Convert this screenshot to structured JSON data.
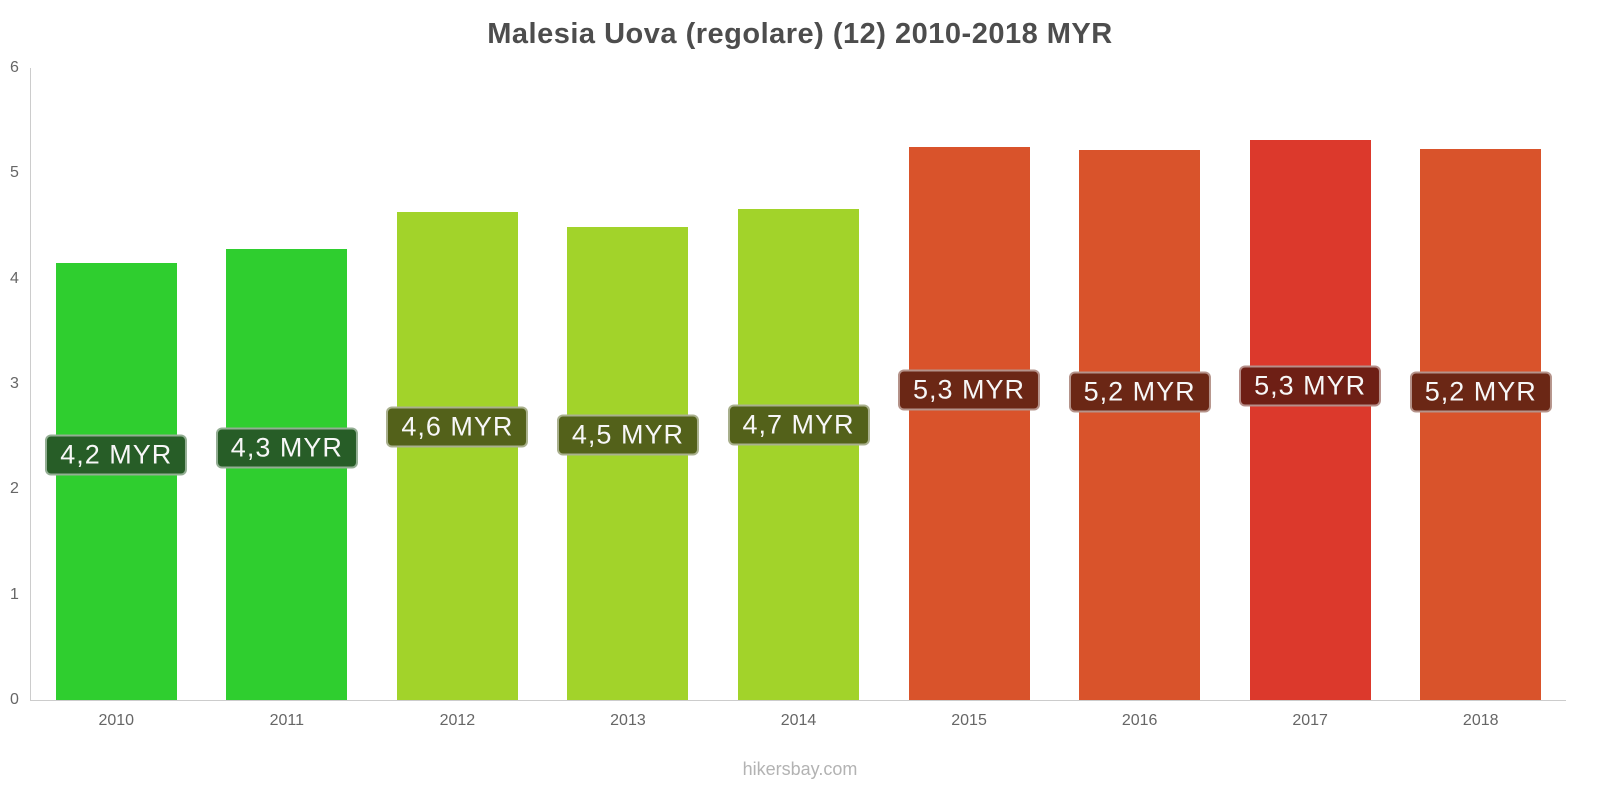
{
  "title": "Malesia Uova (regolare) (12) 2010-2018 MYR",
  "footer": "hikersbay.com",
  "chart_data": {
    "type": "bar",
    "title": "Malesia Uova (regolare) (12) 2010-2018 MYR",
    "unit": "MYR",
    "categories": [
      "2010",
      "2011",
      "2012",
      "2013",
      "2014",
      "2015",
      "2016",
      "2017",
      "2018"
    ],
    "values": [
      4.15,
      4.28,
      4.63,
      4.49,
      4.66,
      5.25,
      5.22,
      5.32,
      5.23
    ],
    "labels": [
      "4,2 MYR",
      "4,3 MYR",
      "4,6 MYR",
      "4,5 MYR",
      "4,7 MYR",
      "5,3 MYR",
      "5,2 MYR",
      "5,3 MYR",
      "5,2 MYR"
    ],
    "bar_colors": [
      "#2fce2f",
      "#2fce2f",
      "#a2d32a",
      "#a2d32a",
      "#a2d32a",
      "#d9532b",
      "#d9532b",
      "#dc392c",
      "#d9532b"
    ],
    "label_bg": [
      "#275d27",
      "#275d27",
      "#53611a",
      "#53611a",
      "#53611a",
      "#6b2715",
      "#6b2715",
      "#6e1f15",
      "#6b2715"
    ],
    "xlabel": "",
    "ylabel": "",
    "ylim": [
      0,
      6
    ],
    "yticks": [
      0,
      1,
      2,
      3,
      4,
      5,
      6
    ],
    "grid": false,
    "legend": false
  }
}
